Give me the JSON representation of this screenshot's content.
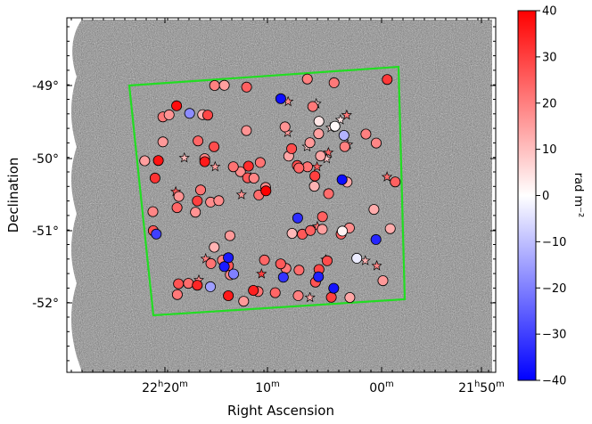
{
  "chart_data": {
    "type": "scatter",
    "title": "",
    "xlabel": "Right Ascension",
    "ylabel": "Declination",
    "x_tick_labels": [
      {
        "h": "22",
        "hu": "h",
        "m": "20",
        "mu": "m"
      },
      {
        "h": "",
        "hu": "",
        "m": "10",
        "mu": "m"
      },
      {
        "h": "",
        "hu": "",
        "m": "00",
        "mu": "m"
      },
      {
        "h": "21",
        "hu": "h",
        "m": "50",
        "mu": "m"
      }
    ],
    "y_tick_labels": [
      "-49°",
      "-50°",
      "-51°",
      "-52°"
    ],
    "colorbar": {
      "label": "rad m⁻²",
      "range": [
        -40,
        40
      ],
      "ticks": [
        "40",
        "30",
        "20",
        "10",
        "0",
        "−10",
        "−20",
        "−30",
        "−40"
      ],
      "colormap": "bwr",
      "colors": {
        "neg": "#0000ff",
        "mid": "#ffffff",
        "pos": "#ff0000"
      }
    },
    "survey_boundary_color": "#22dd22",
    "background": "grayscale radio continuum image",
    "markers": {
      "measured": "circle",
      "other": "star"
    },
    "points_rm": [
      15,
      18,
      22,
      25,
      12,
      20,
      28,
      17,
      14,
      21,
      26,
      19,
      23,
      16,
      24,
      30,
      13,
      27,
      22,
      18,
      20,
      25,
      17,
      29,
      11,
      21,
      16,
      24,
      19,
      22,
      26,
      15,
      28,
      14,
      23,
      20,
      18,
      25,
      12,
      27,
      21,
      17,
      30,
      16,
      22,
      19,
      24,
      13,
      26,
      20,
      18,
      23,
      15,
      28,
      21,
      17,
      25,
      14,
      22,
      19,
      27,
      16,
      24,
      20,
      12,
      26,
      18,
      23,
      15,
      29,
      21,
      17,
      22,
      25,
      14,
      19,
      28,
      16,
      24,
      20,
      32,
      35,
      31,
      33,
      34,
      36,
      30,
      -38,
      -35,
      -36,
      -33,
      -38,
      -34,
      -30,
      -36,
      -37,
      -32,
      -18,
      -15,
      -12,
      -20,
      2,
      4,
      -3,
      1,
      38,
      36,
      40,
      37
    ],
    "stars_rm": [
      8,
      14,
      22,
      18,
      10,
      24,
      5,
      16,
      20,
      12,
      26,
      9,
      15,
      19,
      3,
      21,
      11,
      17,
      23,
      7,
      30,
      13,
      28,
      6,
      18,
      25
    ]
  }
}
